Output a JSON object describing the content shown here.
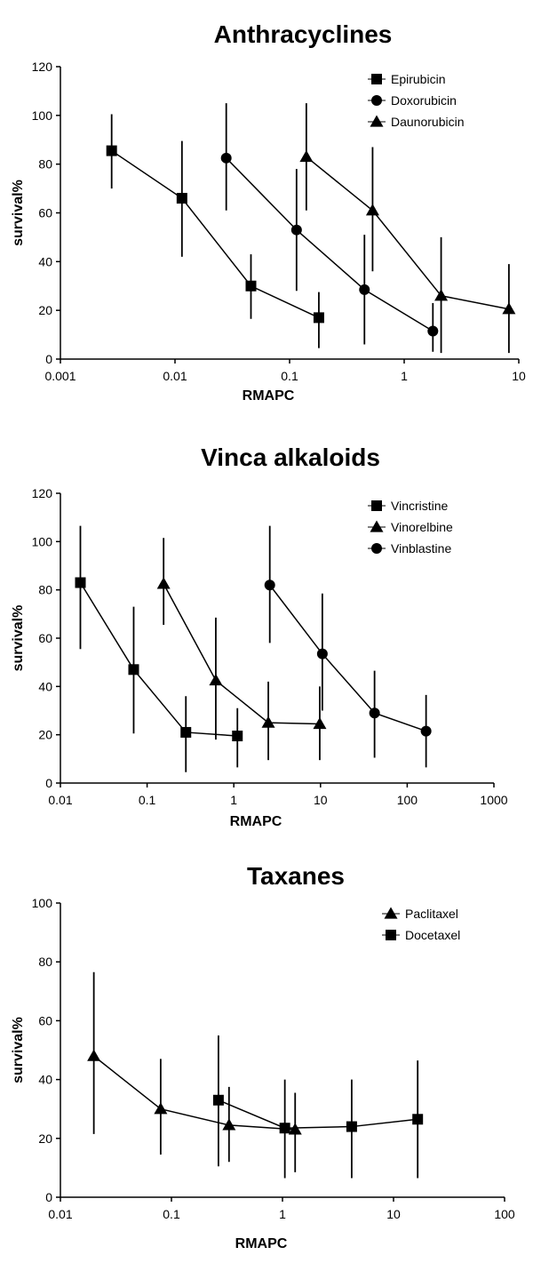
{
  "chart_data": [
    {
      "type": "line",
      "title": "Anthracyclines",
      "xlabel": "RMAPC",
      "ylabel": "survival%",
      "x_scale": "log",
      "xlim": [
        0.001,
        10
      ],
      "ylim": [
        0,
        120
      ],
      "x_ticks": [
        0.001,
        0.01,
        0.1,
        1,
        10
      ],
      "x_tick_labels": [
        "0.001",
        "0.01",
        "0.1",
        "1",
        "10"
      ],
      "y_ticks": [
        0,
        20,
        40,
        60,
        80,
        100,
        120
      ],
      "y_tick_labels": [
        "0",
        "20",
        "40",
        "60",
        "80",
        "100",
        "120"
      ],
      "legend": "top-right",
      "grid": false,
      "series": [
        {
          "name": "Epirubicin",
          "marker": "square",
          "points": [
            {
              "x": 0.0028,
              "y": 85.5,
              "lo": 70,
              "hi": 100.5
            },
            {
              "x": 0.0115,
              "y": 66,
              "lo": 42,
              "hi": 89.5
            },
            {
              "x": 0.046,
              "y": 30,
              "lo": 16.5,
              "hi": 43
            },
            {
              "x": 0.18,
              "y": 17,
              "lo": 4.5,
              "hi": 27.5
            }
          ]
        },
        {
          "name": "Doxorubicin",
          "marker": "circle",
          "points": [
            {
              "x": 0.028,
              "y": 82.5,
              "lo": 61,
              "hi": 105
            },
            {
              "x": 0.115,
              "y": 53,
              "lo": 28,
              "hi": 78
            },
            {
              "x": 0.45,
              "y": 28.5,
              "lo": 6,
              "hi": 51
            },
            {
              "x": 1.78,
              "y": 11.5,
              "lo": 3,
              "hi": 23
            }
          ]
        },
        {
          "name": "Daunorubicin",
          "marker": "triangle",
          "points": [
            {
              "x": 0.14,
              "y": 83,
              "lo": 61,
              "hi": 105
            },
            {
              "x": 0.53,
              "y": 61,
              "lo": 36,
              "hi": 87
            },
            {
              "x": 2.1,
              "y": 26,
              "lo": 2.5,
              "hi": 50
            },
            {
              "x": 8.2,
              "y": 20.5,
              "lo": 2.5,
              "hi": 39
            }
          ]
        }
      ]
    },
    {
      "type": "line",
      "title": "Vinca alkaloids",
      "xlabel": "RMAPC",
      "ylabel": "survival%",
      "x_scale": "log",
      "xlim": [
        0.01,
        1000
      ],
      "ylim": [
        0,
        120
      ],
      "x_ticks": [
        0.01,
        0.1,
        1,
        10,
        100,
        1000
      ],
      "x_tick_labels": [
        "0.01",
        "0.1",
        "1",
        "10",
        "100",
        "1000"
      ],
      "y_ticks": [
        0,
        20,
        40,
        60,
        80,
        100,
        120
      ],
      "y_tick_labels": [
        "0",
        "20",
        "40",
        "60",
        "80",
        "100",
        "120"
      ],
      "legend": "top-right",
      "grid": false,
      "series": [
        {
          "name": "Vincristine",
          "marker": "square",
          "points": [
            {
              "x": 0.017,
              "y": 83,
              "lo": 55.5,
              "hi": 106.5
            },
            {
              "x": 0.07,
              "y": 47,
              "lo": 20.5,
              "hi": 73
            },
            {
              "x": 0.28,
              "y": 21,
              "lo": 4.5,
              "hi": 36
            },
            {
              "x": 1.1,
              "y": 19.5,
              "lo": 6.5,
              "hi": 31
            }
          ]
        },
        {
          "name": "Vinorelbine",
          "marker": "triangle",
          "points": [
            {
              "x": 0.155,
              "y": 82.5,
              "lo": 65.5,
              "hi": 101.5
            },
            {
              "x": 0.62,
              "y": 42.5,
              "lo": 18,
              "hi": 68.5
            },
            {
              "x": 2.5,
              "y": 25,
              "lo": 9.5,
              "hi": 42
            },
            {
              "x": 9.8,
              "y": 24.5,
              "lo": 9.5,
              "hi": 40
            }
          ]
        },
        {
          "name": "Vinblastine",
          "marker": "circle",
          "points": [
            {
              "x": 2.6,
              "y": 82,
              "lo": 58,
              "hi": 106.5
            },
            {
              "x": 10.5,
              "y": 53.5,
              "lo": 30,
              "hi": 78.5
            },
            {
              "x": 42,
              "y": 29,
              "lo": 10.5,
              "hi": 46.5
            },
            {
              "x": 165,
              "y": 21.5,
              "lo": 6.5,
              "hi": 36.5
            }
          ]
        }
      ]
    },
    {
      "type": "line",
      "title": "Taxanes",
      "xlabel": "RMAPC",
      "ylabel": "survival%",
      "x_scale": "log",
      "xlim": [
        0.01,
        100
      ],
      "ylim": [
        0,
        100
      ],
      "x_ticks": [
        0.01,
        0.1,
        1,
        10,
        100
      ],
      "x_tick_labels": [
        "0.01",
        "0.1",
        "1",
        "10",
        "100"
      ],
      "y_ticks": [
        0,
        20,
        40,
        60,
        80,
        100
      ],
      "y_tick_labels": [
        "0",
        "20",
        "40",
        "60",
        "80",
        "100"
      ],
      "legend": "top-right",
      "grid": false,
      "series": [
        {
          "name": "Paclitaxel",
          "marker": "triangle",
          "points": [
            {
              "x": 0.02,
              "y": 48,
              "lo": 21.5,
              "hi": 76.5
            },
            {
              "x": 0.08,
              "y": 30,
              "lo": 14.5,
              "hi": 47
            },
            {
              "x": 0.33,
              "y": 24.5,
              "lo": 12,
              "hi": 37.5
            },
            {
              "x": 1.3,
              "y": 23,
              "lo": 8.5,
              "hi": 35.5
            }
          ]
        },
        {
          "name": "Docetaxel",
          "marker": "square",
          "points": [
            {
              "x": 0.265,
              "y": 33,
              "lo": 10.5,
              "hi": 55
            },
            {
              "x": 1.05,
              "y": 23.5,
              "lo": 6.5,
              "hi": 40
            },
            {
              "x": 4.2,
              "y": 24,
              "lo": 6.5,
              "hi": 40
            },
            {
              "x": 16.5,
              "y": 26.5,
              "lo": 6.5,
              "hi": 46.5
            }
          ]
        }
      ]
    }
  ]
}
